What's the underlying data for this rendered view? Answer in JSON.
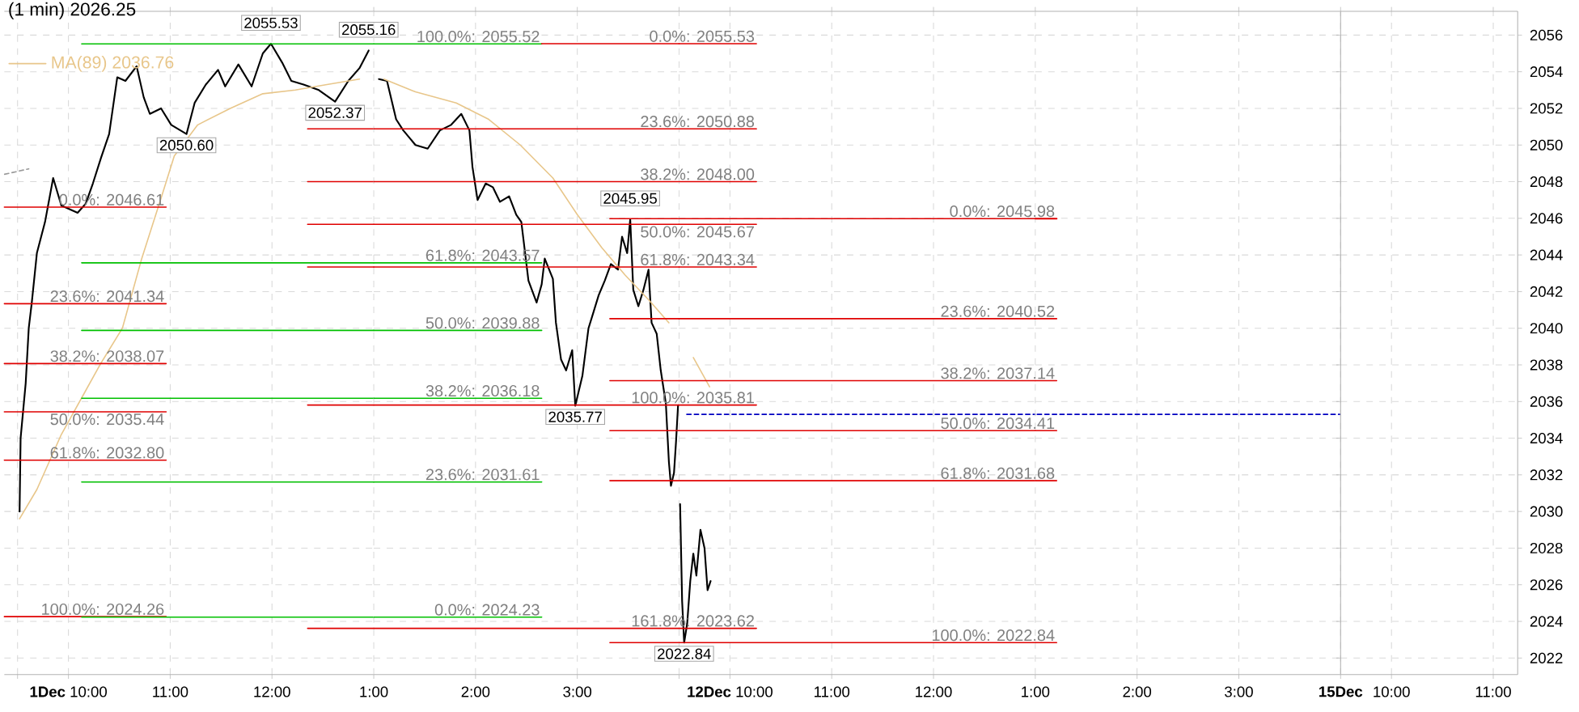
{
  "chart_data": [
    {
      "type": "line",
      "title": "(1 min) 2026.25",
      "xlim": [
        9.37,
        13
      ],
      "ylim": [
        2021.1,
        2057.3
      ],
      "grid": true,
      "legend": "top left",
      "tick_labels": "x",
      "xticks": [
        {
          "value": 9.5,
          "label": null
        },
        {
          "value": 10,
          "label": "**1Dec** 10:00"
        },
        {
          "value": 11,
          "label": "11:00"
        },
        {
          "value": 12,
          "label": "12:00"
        }
      ],
      "yticks": [
        2022,
        2024,
        2026,
        2028,
        2030,
        2032,
        2034,
        2036,
        2038,
        2040,
        2042,
        2044,
        2046,
        2048,
        2050,
        2052,
        2054,
        2056
      ],
      "series": [
        {
          "color": "#000000",
          "x": [
            9.52,
            9.53,
            9.58,
            9.61,
            9.64,
            9.69,
            9.77,
            9.85,
            9.93,
            10.09,
            10.17,
            10.24,
            10.32,
            10.4,
            10.48,
            10.56,
            10.67,
            10.74,
            10.8,
            10.91,
            11.01,
            11.16,
            11.24,
            11.35,
            11.47,
            11.54,
            11.67,
            11.8,
            11.91,
            11.99,
            12.1,
            12.19,
            12.31,
            12.46,
            12.62,
            12.75,
            12.86,
            12.95
          ],
          "values": [
            2030,
            2034,
            2037,
            2040,
            2041.4,
            2044.1,
            2045.8,
            2048.2,
            2046.7,
            2046.3,
            2046.8,
            2047.9,
            2049.3,
            2050.6,
            2053.7,
            2053.5,
            2054.3,
            2052.6,
            2051.7,
            2052,
            2051.1,
            2050.6,
            2052.3,
            2053.3,
            2054.1,
            2053.2,
            2054.4,
            2053.2,
            2055,
            2055.53,
            2054.5,
            2053.5,
            2053.3,
            2053,
            2052.37,
            2053.5,
            2054.2,
            2055.16
          ]
        },
        {
          "name": "MA(89) 2036.76",
          "color": "#e8c68a",
          "x": [
            9.52,
            9.69,
            9.93,
            10.13,
            10.32,
            10.53,
            10.72,
            10.91,
            11.04,
            11.27,
            11.59,
            11.91,
            12.23,
            12.54,
            12.86
          ],
          "values": [
            2029.6,
            2031.2,
            2034.2,
            2036.2,
            2038.1,
            2040,
            2043.8,
            2047.1,
            2049.4,
            2051.1,
            2052,
            2052.8,
            2053,
            2053.3,
            2053.6
          ]
        },
        {
          "name": "0.0%: 2046.61",
          "color": "#e00000",
          "x": [
            9.37,
            10.96
          ],
          "values": [
            2046.61,
            2046.61
          ]
        },
        {
          "name": "23.6%: 2041.34",
          "color": "#e00000",
          "x": [
            9.37,
            10.96
          ],
          "values": [
            2041.34,
            2041.34
          ]
        },
        {
          "name": "38.2%: 2038.07",
          "color": "#e00000",
          "x": [
            9.37,
            10.96
          ],
          "values": [
            2038.07,
            2038.07
          ]
        },
        {
          "name": "50.0%: 2035.44",
          "color": "#e00000",
          "x": [
            9.37,
            10.96
          ],
          "values": [
            2035.44,
            2035.44
          ]
        },
        {
          "name": "61.8%: 2032.80",
          "color": "#e00000",
          "x": [
            9.37,
            10.96
          ],
          "values": [
            2032.8,
            2032.8
          ]
        },
        {
          "name": "100.0%: 2024.26",
          "color": "#e00000",
          "x": [
            9.37,
            10.96
          ],
          "values": [
            2024.26,
            2024.26
          ]
        },
        {
          "color": "#00c000",
          "x": [
            10.13,
            13
          ],
          "values": [
            2055.52,
            2055.52
          ]
        },
        {
          "color": "#00c000",
          "x": [
            10.13,
            13
          ],
          "values": [
            2043.57,
            2043.57
          ]
        },
        {
          "color": "#00c000",
          "x": [
            10.13,
            13
          ],
          "values": [
            2039.88,
            2039.88
          ]
        },
        {
          "color": "#00c000",
          "x": [
            10.13,
            13
          ],
          "values": [
            2036.18,
            2036.18
          ]
        },
        {
          "color": "#00c000",
          "x": [
            10.13,
            13
          ],
          "values": [
            2031.61,
            2031.61
          ]
        },
        {
          "color": "#00c000",
          "x": [
            10.13,
            13
          ],
          "values": [
            2024.23,
            2024.23
          ]
        },
        {
          "color": "#e00000",
          "x": [
            12.35,
            13
          ],
          "values": [
            2050.88,
            2050.88
          ]
        },
        {
          "color": "#e00000",
          "x": [
            12.35,
            13
          ],
          "values": [
            2048.0,
            2048.0
          ]
        },
        {
          "color": "#e00000",
          "x": [
            12.35,
            13
          ],
          "values": [
            2045.67,
            2045.67
          ]
        },
        {
          "color": "#e00000",
          "x": [
            12.35,
            13
          ],
          "values": [
            2043.34,
            2043.34
          ]
        },
        {
          "color": "#e00000",
          "x": [
            12.35,
            13
          ],
          "values": [
            2035.81,
            2035.81
          ]
        },
        {
          "color": "#e00000",
          "x": [
            12.35,
            13
          ],
          "values": [
            2023.62,
            2023.62
          ]
        },
        {
          "color": "#999999",
          "line_style": "dashed",
          "x": [
            9.37,
            9.61
          ],
          "values": [
            2048.4,
            2048.7
          ]
        }
      ],
      "annotations": [
        {
          "text": "2055.53",
          "x": 11.99,
          "y": 2055.53
        },
        {
          "text": "2055.16",
          "x": 12.95,
          "y": 2055.16
        },
        {
          "text": "2052.37",
          "x": 12.62,
          "y": 2052.37
        },
        {
          "text": "2050.60",
          "x": 11.16,
          "y": 2050.6
        }
      ]
    },
    {
      "type": "line",
      "xlim": [
        1,
        4
      ],
      "ylim": [
        2021.1,
        2057.3
      ],
      "grid": true,
      "tick_labels": "x",
      "xticks": [
        {
          "value": 1,
          "label": "1:00"
        },
        {
          "value": 2,
          "label": "2:00"
        },
        {
          "value": 3,
          "label": "3:00"
        }
      ],
      "yticks": [
        2022,
        2024,
        2026,
        2028,
        2030,
        2032,
        2034,
        2036,
        2038,
        2040,
        2042,
        2044,
        2046,
        2048,
        2050,
        2052,
        2054,
        2056
      ],
      "series": [
        {
          "color": "#000000",
          "x": [
            1.05,
            1.13,
            1.22,
            1.29,
            1.41,
            1.53,
            1.65,
            1.76,
            1.86,
            1.94,
            1.97,
            2.02,
            2.1,
            2.17,
            2.24,
            2.33,
            2.4,
            2.45,
            2.52,
            2.6,
            2.65,
            2.68,
            2.76,
            2.79,
            2.84,
            2.89,
            2.95,
            2.98,
            3.05,
            3.11,
            3.16,
            3.21,
            3.27,
            3.33,
            3.4,
            3.44,
            3.49,
            3.52,
            3.55,
            3.6,
            3.65,
            3.7,
            3.73,
            3.78,
            3.82,
            3.87,
            3.9,
            3.92,
            3.95,
            3.97,
            3.99
          ],
          "values": [
            2053.6,
            2053.5,
            2051.4,
            2050.8,
            2050,
            2049.8,
            2050.8,
            2051.1,
            2051.7,
            2050.8,
            2048.8,
            2047,
            2047.9,
            2047.7,
            2046.9,
            2047.2,
            2046.2,
            2045.8,
            2042.6,
            2041.4,
            2042.4,
            2043.8,
            2042.7,
            2040.3,
            2038.3,
            2037.7,
            2038.8,
            2035.77,
            2037.4,
            2040,
            2040.9,
            2041.8,
            2042.6,
            2043.5,
            2043.2,
            2045,
            2044.1,
            2045.95,
            2042.1,
            2041.2,
            2042.1,
            2043.2,
            2040.3,
            2039.7,
            2037.7,
            2035.9,
            2032.7,
            2031.4,
            2032.1,
            2033.8,
            2035.8
          ]
        },
        {
          "color": "#e8c68a",
          "x": [
            1.1,
            1.41,
            1.81,
            2.13,
            2.44,
            2.76,
            3.0,
            3.24,
            3.47,
            3.71,
            3.9
          ],
          "values": [
            2053.6,
            2052.9,
            2052.3,
            2051.4,
            2050,
            2048.2,
            2046.2,
            2044.4,
            2042.9,
            2041.5,
            2040.3
          ]
        },
        {
          "name": "100.0%: 2055.52",
          "color": "#00c000",
          "x": [
            1,
            2.65
          ],
          "values": [
            2055.52,
            2055.52
          ]
        },
        {
          "name": "61.8%: 2043.57",
          "color": "#00c000",
          "x": [
            1,
            2.65
          ],
          "values": [
            2043.57,
            2043.57
          ]
        },
        {
          "name": "50.0%: 2039.88",
          "color": "#00c000",
          "x": [
            1,
            2.65
          ],
          "values": [
            2039.88,
            2039.88
          ]
        },
        {
          "name": "38.2%: 2036.18",
          "color": "#00c000",
          "x": [
            1,
            2.65
          ],
          "values": [
            2036.18,
            2036.18
          ]
        },
        {
          "name": "23.6%: 2031.61",
          "color": "#00c000",
          "x": [
            1,
            2.65
          ],
          "values": [
            2031.61,
            2031.61
          ]
        },
        {
          "name": "0.0%: 2024.23",
          "color": "#00c000",
          "x": [
            1,
            2.65
          ],
          "values": [
            2024.23,
            2024.23
          ]
        },
        {
          "color": "#e00000",
          "x": [
            2.65,
            4
          ],
          "values": [
            2055.53,
            2055.53
          ]
        },
        {
          "color": "#e00000",
          "x": [
            1,
            4
          ],
          "values": [
            2050.88,
            2050.88
          ]
        },
        {
          "color": "#e00000",
          "x": [
            1,
            4
          ],
          "values": [
            2048.0,
            2048.0
          ]
        },
        {
          "color": "#e00000",
          "x": [
            1,
            4
          ],
          "values": [
            2045.67,
            2045.67
          ]
        },
        {
          "color": "#e00000",
          "x": [
            1,
            4
          ],
          "values": [
            2043.34,
            2043.34
          ]
        },
        {
          "color": "#e00000",
          "x": [
            1,
            4
          ],
          "values": [
            2035.81,
            2035.81
          ]
        },
        {
          "color": "#e00000",
          "x": [
            1,
            4
          ],
          "values": [
            2023.62,
            2023.62
          ]
        },
        {
          "color": "#e00000",
          "x": [
            3.32,
            4
          ],
          "values": [
            2045.98,
            2045.98
          ]
        },
        {
          "color": "#e00000",
          "x": [
            3.32,
            4
          ],
          "values": [
            2040.52,
            2040.52
          ]
        },
        {
          "color": "#e00000",
          "x": [
            3.32,
            4
          ],
          "values": [
            2037.14,
            2037.14
          ]
        },
        {
          "color": "#e00000",
          "x": [
            3.32,
            4
          ],
          "values": [
            2034.41,
            2034.41
          ]
        },
        {
          "color": "#e00000",
          "x": [
            3.32,
            4
          ],
          "values": [
            2031.68,
            2031.68
          ]
        },
        {
          "color": "#e00000",
          "x": [
            3.32,
            4
          ],
          "values": [
            2022.84,
            2022.84
          ]
        }
      ],
      "annotations": [
        {
          "text": "2045.95",
          "x": 3.52,
          "y": 2045.95
        },
        {
          "text": "2035.77",
          "x": 2.98,
          "y": 2035.77
        }
      ]
    },
    {
      "type": "line",
      "xlim": [
        9.5,
        13
      ],
      "ylim": [
        2021.1,
        2057.3
      ],
      "grid": true,
      "tick_labels": "x",
      "xticks": [
        {
          "value": 9.5,
          "label": null
        },
        {
          "value": 10,
          "label": "**12Dec** 10:00"
        },
        {
          "value": 11,
          "label": "11:00"
        },
        {
          "value": 12,
          "label": "12:00"
        }
      ],
      "yticks": [
        2022,
        2024,
        2026,
        2028,
        2030,
        2032,
        2034,
        2036,
        2038,
        2040,
        2042,
        2044,
        2046,
        2048,
        2050,
        2052,
        2054,
        2056
      ],
      "series": [
        {
          "color": "#000000",
          "x": [
            9.51,
            9.53,
            9.55,
            9.58,
            9.61,
            9.64,
            9.67,
            9.71,
            9.75,
            9.78,
            9.81
          ],
          "values": [
            2030.4,
            2025.1,
            2022.84,
            2023.9,
            2026.2,
            2027.7,
            2026.5,
            2029,
            2028,
            2025.7,
            2026.2
          ]
        },
        {
          "color": "#e8c68a",
          "x": [
            9.64,
            9.8
          ],
          "values": [
            2038.4,
            2036.8
          ]
        },
        {
          "name": "0.0%: 2055.53",
          "color": "#e00000",
          "x": [
            9.5,
            10.26
          ],
          "values": [
            2055.53,
            2055.53
          ]
        },
        {
          "name": "23.6%: 2050.88",
          "color": "#e00000",
          "x": [
            9.5,
            10.26
          ],
          "values": [
            2050.88,
            2050.88
          ]
        },
        {
          "name": "38.2%: 2048.00",
          "color": "#e00000",
          "x": [
            9.5,
            10.26
          ],
          "values": [
            2048.0,
            2048.0
          ]
        },
        {
          "name": "50.0%: 2045.67",
          "color": "#e00000",
          "x": [
            9.5,
            10.26
          ],
          "values": [
            2045.67,
            2045.67
          ]
        },
        {
          "name": "61.8%: 2043.34",
          "color": "#e00000",
          "x": [
            9.5,
            10.26
          ],
          "values": [
            2043.34,
            2043.34
          ]
        },
        {
          "name": "100.0%: 2035.81",
          "color": "#e00000",
          "x": [
            9.5,
            10.26
          ],
          "values": [
            2035.81,
            2035.81
          ]
        },
        {
          "name": "161.8%: 2023.62",
          "color": "#e00000",
          "x": [
            9.5,
            10.26
          ],
          "values": [
            2023.62,
            2023.62
          ]
        },
        {
          "color": "#e00000",
          "x": [
            9.5,
            13
          ],
          "values": [
            2045.98,
            2045.98
          ]
        },
        {
          "color": "#e00000",
          "x": [
            9.5,
            13
          ],
          "values": [
            2040.52,
            2040.52
          ]
        },
        {
          "color": "#e00000",
          "x": [
            9.5,
            13
          ],
          "values": [
            2037.14,
            2037.14
          ]
        },
        {
          "color": "#e00000",
          "x": [
            9.5,
            13
          ],
          "values": [
            2034.41,
            2034.41
          ]
        },
        {
          "color": "#e00000",
          "x": [
            9.5,
            13
          ],
          "values": [
            2031.68,
            2031.68
          ]
        },
        {
          "color": "#e00000",
          "x": [
            9.5,
            13
          ],
          "values": [
            2022.84,
            2022.84
          ]
        },
        {
          "color": "#0000c0",
          "line_style": "dashed",
          "x": [
            9.55,
            13
          ],
          "values": [
            2035.3,
            2035.3
          ]
        }
      ],
      "annotations": [
        {
          "text": "2022.84",
          "x": 9.55,
          "y": 2022.84
        }
      ]
    },
    {
      "type": "line",
      "xlim": [
        1,
        4
      ],
      "ylim": [
        2021.1,
        2057.3
      ],
      "grid": true,
      "tick_labels": "x",
      "xticks": [
        {
          "value": 1,
          "label": "1:00"
        },
        {
          "value": 2,
          "label": "2:00"
        },
        {
          "value": 3,
          "label": "3:00"
        }
      ],
      "yticks": [
        2022,
        2024,
        2026,
        2028,
        2030,
        2032,
        2034,
        2036,
        2038,
        2040,
        2042,
        2044,
        2046,
        2048,
        2050,
        2052,
        2054,
        2056
      ],
      "series": [
        {
          "name": "0.0%: 2045.98",
          "color": "#e00000",
          "x": [
            1,
            1.21
          ],
          "values": [
            2045.98,
            2045.98
          ]
        },
        {
          "name": "23.6%: 2040.52",
          "color": "#e00000",
          "x": [
            1,
            1.21
          ],
          "values": [
            2040.52,
            2040.52
          ]
        },
        {
          "name": "38.2%: 2037.14",
          "color": "#e00000",
          "x": [
            1,
            1.21
          ],
          "values": [
            2037.14,
            2037.14
          ]
        },
        {
          "name": "50.0%: 2034.41",
          "color": "#e00000",
          "x": [
            1,
            1.21
          ],
          "values": [
            2034.41,
            2034.41
          ]
        },
        {
          "name": "61.8%: 2031.68",
          "color": "#e00000",
          "x": [
            1,
            1.21
          ],
          "values": [
            2031.68,
            2031.68
          ]
        },
        {
          "name": "100.0%: 2022.84",
          "color": "#e00000",
          "x": [
            1,
            1.21
          ],
          "values": [
            2022.84,
            2022.84
          ]
        },
        {
          "color": "#0000c0",
          "line_style": "dashed",
          "x": [
            1,
            4
          ],
          "values": [
            2035.3,
            2035.3
          ]
        }
      ]
    },
    {
      "type": "line",
      "xlim": [
        9.5,
        11.24
      ],
      "ylim": [
        2021.1,
        2057.3
      ],
      "grid": true,
      "xticks": [
        {
          "value": 9.5,
          "label": "**15Dec**"
        },
        {
          "value": 10,
          "label": "10:00"
        },
        {
          "value": 11,
          "label": "11:00"
        }
      ],
      "yticks": [
        2022,
        2024,
        2026,
        2028,
        2030,
        2032,
        2034,
        2036,
        2038,
        2040,
        2042,
        2044,
        2046,
        2048,
        2050,
        2052,
        2054,
        2056
      ]
    }
  ]
}
